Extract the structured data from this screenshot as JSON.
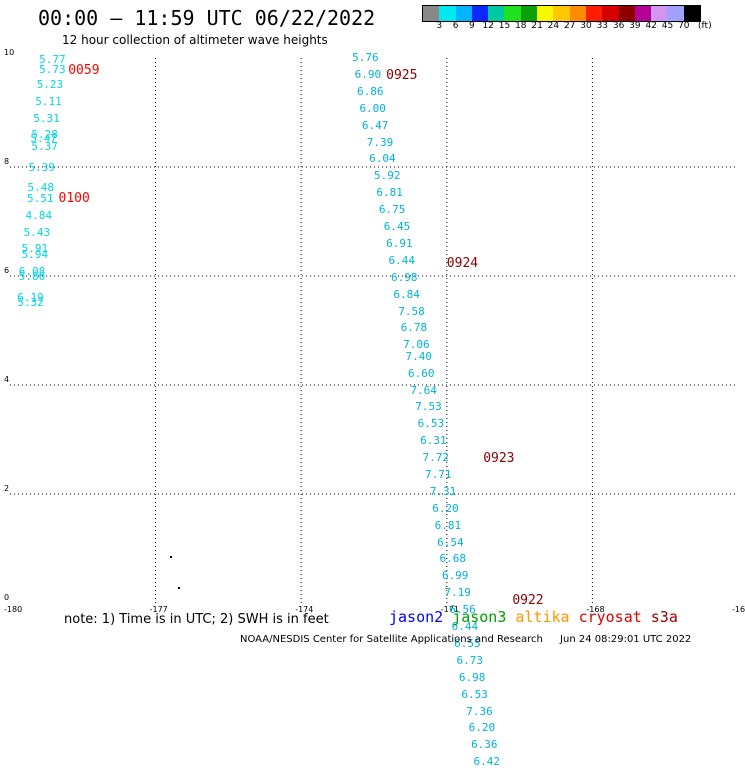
{
  "title": "00:00 – 11:59 UTC 06/22/2022",
  "subtitle": "12 hour collection of altimeter wave heights",
  "legend": {
    "colors": [
      "#888888",
      "#00e8f0",
      "#00b4ff",
      "#0a28ff",
      "#00c8a0",
      "#1ee21e",
      "#0aa00a",
      "#f8f800",
      "#ffc800",
      "#ff8c00",
      "#ff1e00",
      "#d20000",
      "#8c0000",
      "#b40096",
      "#d296f0",
      "#a0a0ff",
      "#000000"
    ],
    "labels": [
      "3",
      "6",
      "9",
      "12",
      "15",
      "18",
      "21",
      "24",
      "27",
      "30",
      "33",
      "36",
      "39",
      "42",
      "45",
      "70"
    ],
    "unit": "(ft)"
  },
  "axes": {
    "x_ticks": [
      "-180",
      "-177",
      "-174",
      "-171",
      "-168",
      "-16"
    ],
    "y_ticks": [
      "0",
      "2",
      "4",
      "6",
      "8",
      "10"
    ]
  },
  "time_labels": [
    {
      "text": "0059",
      "color": "#ff0000",
      "lon": -178.8,
      "lat": 9.75
    },
    {
      "text": "0100",
      "color": "#ff0000",
      "lon": -179.0,
      "lat": 7.4
    },
    {
      "text": "0925",
      "color": "#8b0000",
      "lon": -172.25,
      "lat": 9.65
    },
    {
      "text": "0924",
      "color": "#8b0000",
      "lon": -171.0,
      "lat": 6.2
    },
    {
      "text": "0923",
      "color": "#8b0000",
      "lon": -170.25,
      "lat": 2.62
    },
    {
      "text": "0922",
      "color": "#8b0000",
      "lon": -169.65,
      "lat": 0.02
    }
  ],
  "track_west": {
    "color": "#00d8e8",
    "points": [
      {
        "v": "5.77",
        "lon": -179.4,
        "lat": 9.95
      },
      {
        "v": "5.73",
        "lon": -179.4,
        "lat": 9.77
      },
      {
        "v": "5.23",
        "lon": -179.45,
        "lat": 9.48
      },
      {
        "v": "5.11",
        "lon": -179.48,
        "lat": 9.17
      },
      {
        "v": "5.31",
        "lon": -179.52,
        "lat": 8.86
      },
      {
        "v": "5.28",
        "lon": -179.56,
        "lat": 8.56
      },
      {
        "v": "5.47",
        "lon": -179.58,
        "lat": 8.5
      },
      {
        "v": "5.37",
        "lon": -179.56,
        "lat": 8.34
      },
      {
        "v": "5.39",
        "lon": -179.62,
        "lat": 7.96
      },
      {
        "v": "5.48",
        "lon": -179.64,
        "lat": 7.6
      },
      {
        "v": "5.51",
        "lon": -179.65,
        "lat": 7.4
      },
      {
        "v": "4.84",
        "lon": -179.68,
        "lat": 7.08
      },
      {
        "v": "5.43",
        "lon": -179.72,
        "lat": 6.77
      },
      {
        "v": "5.91",
        "lon": -179.76,
        "lat": 6.47
      },
      {
        "v": "5.94",
        "lon": -179.76,
        "lat": 6.37
      },
      {
        "v": "6.08",
        "lon": -179.82,
        "lat": 6.05
      },
      {
        "v": "5.86",
        "lon": -179.82,
        "lat": 5.96
      },
      {
        "v": "6.19",
        "lon": -179.85,
        "lat": 5.57
      },
      {
        "v": "5.32",
        "lon": -179.85,
        "lat": 5.48
      }
    ]
  },
  "track_east": {
    "color": "#00b4d8",
    "points": [
      {
        "v": "5.76",
        "lon": -172.95,
        "lat": 9.98
      },
      {
        "v": "6.90",
        "lon": -172.9,
        "lat": 9.67
      },
      {
        "v": "6.86",
        "lon": -172.85,
        "lat": 9.36
      },
      {
        "v": "6.00",
        "lon": -172.8,
        "lat": 9.05
      },
      {
        "v": "6.47",
        "lon": -172.75,
        "lat": 8.74
      },
      {
        "v": "7.39",
        "lon": -172.65,
        "lat": 8.43
      },
      {
        "v": "6.04",
        "lon": -172.6,
        "lat": 8.12
      },
      {
        "v": "5.92",
        "lon": -172.5,
        "lat": 7.81
      },
      {
        "v": "6.81",
        "lon": -172.45,
        "lat": 7.5
      },
      {
        "v": "6.75",
        "lon": -172.4,
        "lat": 7.19
      },
      {
        "v": "6.45",
        "lon": -172.3,
        "lat": 6.88
      },
      {
        "v": "6.91",
        "lon": -172.25,
        "lat": 6.57
      },
      {
        "v": "6.44",
        "lon": -172.2,
        "lat": 6.26
      },
      {
        "v": "6.98",
        "lon": -172.15,
        "lat": 5.95
      },
      {
        "v": "6.84",
        "lon": -172.1,
        "lat": 5.64
      },
      {
        "v": "7.58",
        "lon": -172.0,
        "lat": 5.33
      },
      {
        "v": "6.78",
        "lon": -171.95,
        "lat": 5.02
      },
      {
        "v": "7.06",
        "lon": -171.9,
        "lat": 4.71
      },
      {
        "v": "7.40",
        "lon": -171.85,
        "lat": 4.5
      },
      {
        "v": "6.60",
        "lon": -171.8,
        "lat": 4.19
      },
      {
        "v": "7.64",
        "lon": -171.75,
        "lat": 3.88
      },
      {
        "v": "7.53",
        "lon": -171.65,
        "lat": 3.57
      },
      {
        "v": "6.53",
        "lon": -171.6,
        "lat": 3.26
      },
      {
        "v": "6.31",
        "lon": -171.55,
        "lat": 2.95
      },
      {
        "v": "7.72",
        "lon": -171.5,
        "lat": 2.64
      },
      {
        "v": "7.71",
        "lon": -171.45,
        "lat": 2.33
      },
      {
        "v": "7.31",
        "lon": -171.35,
        "lat": 2.02
      },
      {
        "v": "6.20",
        "lon": -171.3,
        "lat": 1.71
      },
      {
        "v": "6.81",
        "lon": -171.25,
        "lat": 1.4
      },
      {
        "v": "6.54",
        "lon": -171.2,
        "lat": 1.09
      },
      {
        "v": "6.68",
        "lon": -171.15,
        "lat": 0.78
      },
      {
        "v": "6.99",
        "lon": -171.1,
        "lat": 0.47
      },
      {
        "v": "7.19",
        "lon": -171.05,
        "lat": 0.16
      },
      {
        "v": "6.56",
        "lon": -170.95,
        "lat": -0.15
      },
      {
        "v": "6.44",
        "lon": -170.9,
        "lat": -0.46
      },
      {
        "v": "6.55",
        "lon": -170.85,
        "lat": -0.77
      },
      {
        "v": "6.73",
        "lon": -170.8,
        "lat": -1.08
      },
      {
        "v": "6.98",
        "lon": -170.75,
        "lat": -1.39
      },
      {
        "v": "6.53",
        "lon": -170.7,
        "lat": -1.7
      },
      {
        "v": "7.36",
        "lon": -170.6,
        "lat": -2.01
      },
      {
        "v": "6.20",
        "lon": -170.55,
        "lat": -2.32
      },
      {
        "v": "6.36",
        "lon": -170.5,
        "lat": -2.63
      },
      {
        "v": "6.42",
        "lon": -170.45,
        "lat": -2.94
      }
    ]
  },
  "note": "note: 1) Time is in UTC; 2) SWH is in feet",
  "satellites": [
    {
      "name": "jason2",
      "color": "#0000ff"
    },
    {
      "name": "jason3",
      "color": "#00a000"
    },
    {
      "name": "altika",
      "color": "#ff9600"
    },
    {
      "name": "cryosat",
      "color": "#e00000"
    },
    {
      "name": "s3a",
      "color": "#a00000"
    }
  ],
  "credit": {
    "org": "NOAA/NESDIS Center for Satellite Applications and Research",
    "date": "Jun 24 08:29:01 UTC 2022"
  }
}
